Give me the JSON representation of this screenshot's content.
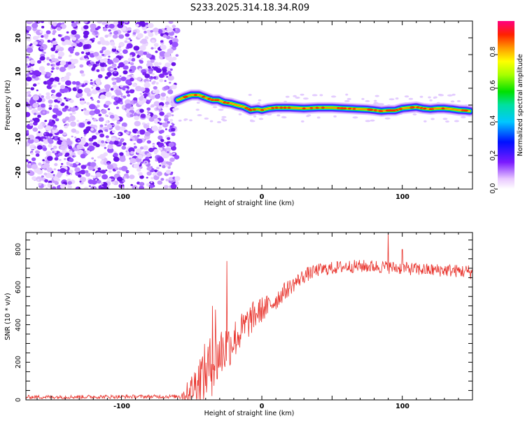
{
  "title": "S233.2025.314.18.34.R09",
  "colors": {
    "snr_line": "#e8322b",
    "noise": "#8a3cf0",
    "frame": "#000000"
  },
  "chart_data": [
    {
      "type": "heatmap",
      "name": "spectrogram",
      "xlabel": "Height of straight line (km)",
      "ylabel": "Frequency (Hz)",
      "xlim": [
        -168,
        150
      ],
      "ylim": [
        -25,
        25
      ],
      "x_ticks": [
        -100,
        0,
        100
      ],
      "y_ticks": [
        20,
        10,
        0,
        -10,
        -20
      ],
      "noise_region_x": [
        -168,
        -60
      ],
      "signal_track": {
        "x": [
          -60,
          -54,
          -50,
          -45,
          -40,
          -35,
          -31,
          -27,
          -22,
          -18,
          -13,
          -8,
          -3,
          0,
          5,
          10,
          20,
          30,
          40,
          50,
          60,
          70,
          75,
          80,
          85,
          90,
          95,
          100,
          105,
          110,
          115,
          120,
          125,
          130,
          135,
          140,
          145,
          148
        ],
        "freq": [
          1.5,
          2.5,
          3.0,
          3.0,
          2.2,
          1.5,
          1.5,
          0.8,
          0.5,
          0.0,
          -0.5,
          -1.5,
          -1.2,
          -1.5,
          -1.0,
          -0.8,
          -0.8,
          -1.0,
          -0.8,
          -0.8,
          -1.0,
          -1.2,
          -1.3,
          -1.5,
          -1.8,
          -1.6,
          -1.6,
          -1.0,
          -0.8,
          -0.6,
          -1.0,
          -1.2,
          -1.0,
          -1.0,
          -1.2,
          -1.5,
          -1.6,
          -1.8
        ]
      },
      "colorbar": {
        "label": "Normalized spectral amplitude",
        "range": [
          0.0,
          1.0
        ],
        "ticks": [
          "0.0",
          "0.2",
          "0.4",
          "0.6",
          "0.8"
        ],
        "tick_values": [
          0.0,
          0.2,
          0.4,
          0.6,
          0.8
        ]
      }
    },
    {
      "type": "line",
      "name": "snr",
      "xlabel": "Height of straight line (km)",
      "ylabel": "SNR (10 * v/v)",
      "xlim": [
        -168,
        150
      ],
      "ylim": [
        0,
        890
      ],
      "x_ticks": [
        -100,
        0,
        100
      ],
      "y_ticks": [
        0,
        200,
        400,
        600,
        800
      ],
      "envelope": {
        "x": [
          -168,
          -60,
          -55,
          -50,
          -45,
          -40,
          -35,
          -30,
          -25,
          -20,
          -15,
          -10,
          -5,
          0,
          5,
          10,
          15,
          20,
          25,
          30,
          40,
          50,
          60,
          70,
          80,
          90,
          100,
          110,
          120,
          130,
          140,
          150
        ],
        "mean": [
          15,
          18,
          30,
          60,
          100,
          150,
          190,
          250,
          280,
          320,
          360,
          410,
          450,
          480,
          500,
          530,
          570,
          600,
          630,
          660,
          690,
          700,
          710,
          710,
          710,
          705,
          700,
          695,
          690,
          690,
          685,
          680
        ],
        "noise_amp": [
          10,
          10,
          40,
          80,
          140,
          160,
          170,
          160,
          130,
          110,
          100,
          90,
          80,
          70,
          60,
          55,
          50,
          45,
          40,
          40,
          35,
          35,
          35,
          35,
          35,
          35,
          35,
          35,
          35,
          35,
          35,
          40
        ]
      },
      "spikes": [
        {
          "x": -35,
          "y": 500
        },
        {
          "x": -33,
          "y": 480
        },
        {
          "x": -25,
          "y": 738
        },
        {
          "x": 90,
          "y": 885
        },
        {
          "x": 100,
          "y": 800
        }
      ]
    }
  ]
}
